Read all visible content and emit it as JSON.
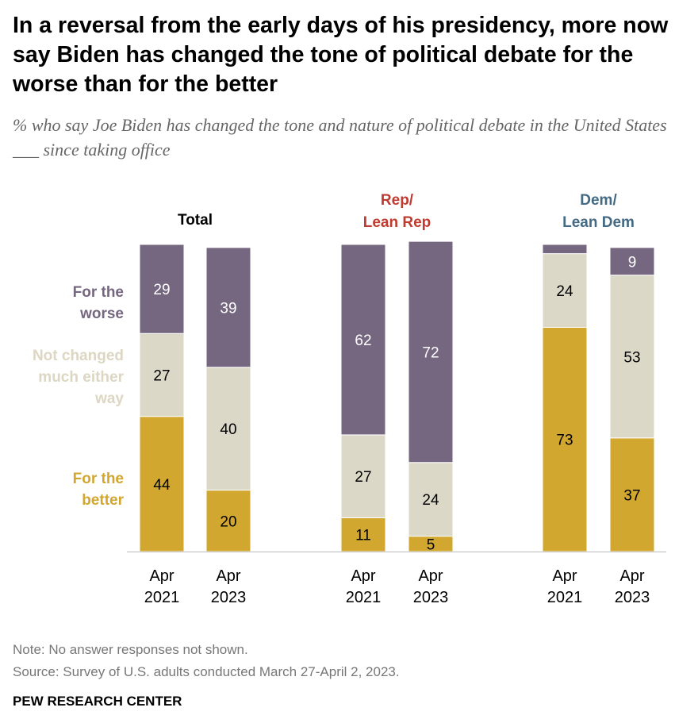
{
  "title": "In a reversal from the early days of his presidency, more now say Biden has changed the tone of political debate for the worse than for the better",
  "subtitle": "% who say Joe Biden has changed the tone and nature of political debate in the United States ___ since taking office",
  "note": "Note: No answer responses not shown.",
  "source": "Source: Survey of U.S. adults conducted March 27-April 2, 2023.",
  "brand": "PEW RESEARCH CENTER",
  "colors": {
    "worse": "#756780",
    "not_changed": "#dcd8c8",
    "better": "#d1a730",
    "rep": "#bf3b2f",
    "dem": "#436983",
    "total": "#000000",
    "legend_not_changed": "#dcd6c3"
  },
  "chart_data": {
    "type": "stacked-bar",
    "ylim": [
      0,
      100
    ],
    "legend": [
      {
        "key": "worse",
        "lines": [
          "For the",
          "worse"
        ]
      },
      {
        "key": "not_changed",
        "lines": [
          "Not changed",
          "much either",
          "way"
        ]
      },
      {
        "key": "better",
        "lines": [
          "For the",
          "better"
        ]
      }
    ],
    "groups": [
      {
        "name": "total",
        "title": [
          "Total"
        ],
        "bars": [
          {
            "x": [
              "Apr",
              "2021"
            ],
            "better": 44,
            "not_changed": 27,
            "worse": 29,
            "labels": {
              "better": "44",
              "not_changed": "27",
              "worse": "29"
            }
          },
          {
            "x": [
              "Apr",
              "2023"
            ],
            "better": 20,
            "not_changed": 40,
            "worse": 39,
            "labels": {
              "better": "20",
              "not_changed": "40",
              "worse": "39"
            }
          }
        ]
      },
      {
        "name": "rep",
        "title": [
          "Rep/",
          "Lean Rep"
        ],
        "bars": [
          {
            "x": [
              "Apr",
              "2021"
            ],
            "better": 11,
            "not_changed": 27,
            "worse": 62,
            "labels": {
              "better": "11",
              "not_changed": "27",
              "worse": "62"
            }
          },
          {
            "x": [
              "Apr",
              "2023"
            ],
            "better": 5,
            "not_changed": 24,
            "worse": 72,
            "labels": {
              "better": "5",
              "not_changed": "24",
              "worse": "72"
            }
          }
        ]
      },
      {
        "name": "dem",
        "title": [
          "Dem/",
          "Lean Dem"
        ],
        "bars": [
          {
            "x": [
              "Apr",
              "2021"
            ],
            "better": 73,
            "not_changed": 24,
            "worse": 3,
            "labels": {
              "better": "73",
              "not_changed": "24",
              "worse": ""
            }
          },
          {
            "x": [
              "Apr",
              "2023"
            ],
            "better": 37,
            "not_changed": 53,
            "worse": 9,
            "labels": {
              "better": "37",
              "not_changed": "53",
              "worse": "9"
            }
          }
        ]
      }
    ]
  }
}
